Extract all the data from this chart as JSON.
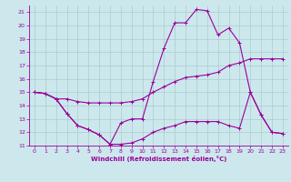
{
  "xlabel": "Windchill (Refroidissement éolien,°C)",
  "bg_color": "#cce8ed",
  "grid_color": "#aacccc",
  "line_color": "#990099",
  "xlim": [
    -0.5,
    23.5
  ],
  "ylim": [
    11,
    21.5
  ],
  "yticks": [
    11,
    12,
    13,
    14,
    15,
    16,
    17,
    18,
    19,
    20,
    21
  ],
  "xticks": [
    0,
    1,
    2,
    3,
    4,
    5,
    6,
    7,
    8,
    9,
    10,
    11,
    12,
    13,
    14,
    15,
    16,
    17,
    18,
    19,
    20,
    21,
    22,
    23
  ],
  "line1_x": [
    0,
    1,
    2,
    3,
    4,
    5,
    6,
    7,
    8,
    9,
    10,
    11,
    12,
    13,
    14,
    15,
    16,
    17,
    18,
    19,
    20,
    21,
    22,
    23
  ],
  "line1_y": [
    15.0,
    14.9,
    14.5,
    13.4,
    12.5,
    12.2,
    11.8,
    11.1,
    12.7,
    13.0,
    13.0,
    15.8,
    18.3,
    20.2,
    20.2,
    21.2,
    21.1,
    19.3,
    19.8,
    18.7,
    15.0,
    13.3,
    12.0,
    11.9
  ],
  "line2_x": [
    0,
    1,
    2,
    3,
    4,
    5,
    6,
    7,
    8,
    9,
    10,
    11,
    12,
    13,
    14,
    15,
    16,
    17,
    18,
    19,
    20,
    21,
    22,
    23
  ],
  "line2_y": [
    15.0,
    14.9,
    14.5,
    14.5,
    14.3,
    14.2,
    14.2,
    14.2,
    14.2,
    14.3,
    14.5,
    15.0,
    15.4,
    15.8,
    16.1,
    16.2,
    16.3,
    16.5,
    17.0,
    17.2,
    17.5,
    17.5,
    17.5,
    17.5
  ],
  "line3_x": [
    0,
    1,
    2,
    3,
    4,
    5,
    6,
    7,
    8,
    9,
    10,
    11,
    12,
    13,
    14,
    15,
    16,
    17,
    18,
    19,
    20,
    21,
    22,
    23
  ],
  "line3_y": [
    15.0,
    14.9,
    14.5,
    13.4,
    12.5,
    12.2,
    11.8,
    11.1,
    11.1,
    11.2,
    11.5,
    12.0,
    12.3,
    12.5,
    12.8,
    12.8,
    12.8,
    12.8,
    12.5,
    12.3,
    15.0,
    13.3,
    12.0,
    11.9
  ],
  "marker_size": 2.5,
  "line_width": 0.8,
  "tick_labelsize": 4.5,
  "xlabel_fontsize": 5.0
}
